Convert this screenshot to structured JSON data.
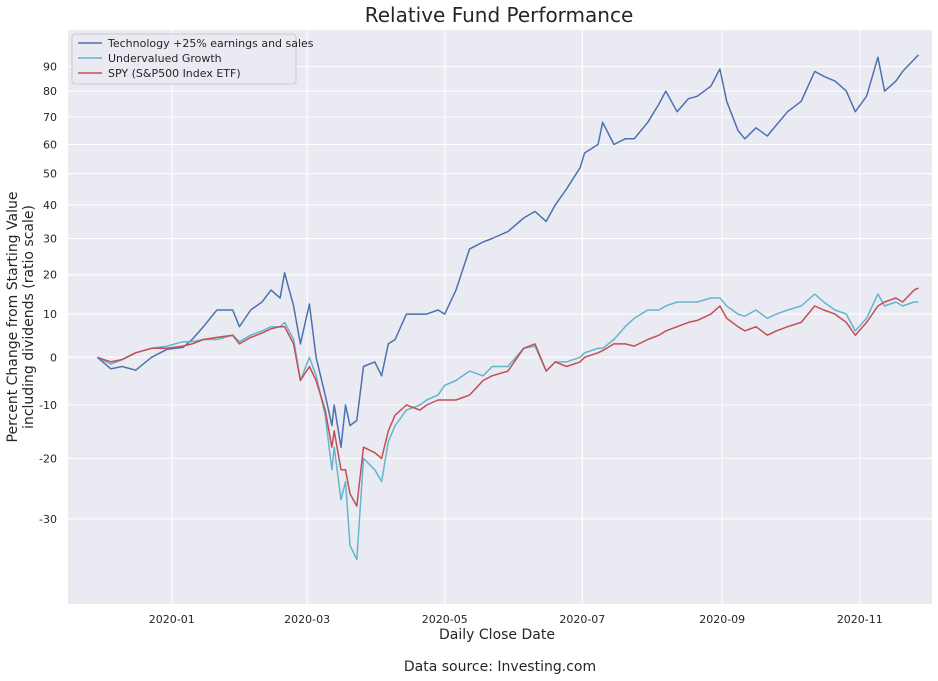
{
  "chart_data": {
    "type": "line",
    "title": "Relative Fund Performance",
    "xlabel": "Daily Close Date",
    "ylabel": "Percent Change from Starting Value",
    "ylabel2": "including dividends (ratio scale)",
    "source_note": "Data source: Investing.com",
    "y_scale": "ratio",
    "grid": true,
    "legend_position": "top-left",
    "xlim": [
      "2019-11-16",
      "2020-12-03"
    ],
    "ylim": [
      -42,
      106
    ],
    "x_ticks": [
      "2020-01-01",
      "2020-03-01",
      "2020-05-01",
      "2020-07-01",
      "2020-09-01",
      "2020-11-01"
    ],
    "x_tick_labels": [
      "2020-01",
      "2020-03",
      "2020-05",
      "2020-07",
      "2020-09",
      "2020-11"
    ],
    "y_ticks": [
      -30,
      -20,
      -10,
      0,
      10,
      20,
      30,
      40,
      50,
      60,
      70,
      80,
      90
    ],
    "y_tick_labels": [
      "-30",
      "-20",
      "-10",
      "0",
      "10",
      "20",
      "30",
      "40",
      "50",
      "60",
      "70",
      "80",
      "90"
    ],
    "series": [
      {
        "name": "Technology +25% earnings and sales",
        "color": "#4c72b0",
        "points": [
          [
            "2019-11-29",
            0
          ],
          [
            "2019-12-05",
            -2.5
          ],
          [
            "2019-12-10",
            -2
          ],
          [
            "2019-12-16",
            -2.8
          ],
          [
            "2019-12-23",
            0
          ],
          [
            "2019-12-30",
            1.8
          ],
          [
            "2020-01-06",
            2.2
          ],
          [
            "2020-01-10",
            4
          ],
          [
            "2020-01-15",
            7
          ],
          [
            "2020-01-21",
            11
          ],
          [
            "2020-01-28",
            11
          ],
          [
            "2020-01-31",
            7
          ],
          [
            "2020-02-05",
            11
          ],
          [
            "2020-02-10",
            13
          ],
          [
            "2020-02-14",
            16
          ],
          [
            "2020-02-18",
            14
          ],
          [
            "2020-02-20",
            20.5
          ],
          [
            "2020-02-24",
            12
          ],
          [
            "2020-02-27",
            3
          ],
          [
            "2020-03-02",
            12.5
          ],
          [
            "2020-03-05",
            0
          ],
          [
            "2020-03-09",
            -8
          ],
          [
            "2020-03-12",
            -14
          ],
          [
            "2020-03-13",
            -10
          ],
          [
            "2020-03-16",
            -18
          ],
          [
            "2020-03-18",
            -10
          ],
          [
            "2020-03-20",
            -14
          ],
          [
            "2020-03-23",
            -13
          ],
          [
            "2020-03-26",
            -2
          ],
          [
            "2020-03-31",
            -1
          ],
          [
            "2020-04-03",
            -4
          ],
          [
            "2020-04-06",
            3
          ],
          [
            "2020-04-09",
            4
          ],
          [
            "2020-04-14",
            10
          ],
          [
            "2020-04-20",
            10
          ],
          [
            "2020-04-23",
            10
          ],
          [
            "2020-04-28",
            11
          ],
          [
            "2020-05-01",
            10
          ],
          [
            "2020-05-06",
            16
          ],
          [
            "2020-05-12",
            27
          ],
          [
            "2020-05-18",
            29
          ],
          [
            "2020-05-22",
            30
          ],
          [
            "2020-05-29",
            32
          ],
          [
            "2020-06-05",
            36
          ],
          [
            "2020-06-10",
            38
          ],
          [
            "2020-06-15",
            35
          ],
          [
            "2020-06-19",
            40
          ],
          [
            "2020-06-24",
            45
          ],
          [
            "2020-06-30",
            52
          ],
          [
            "2020-07-02",
            57
          ],
          [
            "2020-07-08",
            60
          ],
          [
            "2020-07-10",
            68
          ],
          [
            "2020-07-15",
            60
          ],
          [
            "2020-07-20",
            62
          ],
          [
            "2020-07-24",
            62
          ],
          [
            "2020-07-30",
            68
          ],
          [
            "2020-08-04",
            75
          ],
          [
            "2020-08-07",
            80
          ],
          [
            "2020-08-12",
            72
          ],
          [
            "2020-08-17",
            77
          ],
          [
            "2020-08-21",
            78
          ],
          [
            "2020-08-27",
            82
          ],
          [
            "2020-08-31",
            89
          ],
          [
            "2020-09-03",
            76
          ],
          [
            "2020-09-08",
            65
          ],
          [
            "2020-09-11",
            62
          ],
          [
            "2020-09-16",
            66
          ],
          [
            "2020-09-21",
            63
          ],
          [
            "2020-09-25",
            67
          ],
          [
            "2020-09-30",
            72
          ],
          [
            "2020-10-06",
            76
          ],
          [
            "2020-10-12",
            88
          ],
          [
            "2020-10-16",
            86
          ],
          [
            "2020-10-21",
            84
          ],
          [
            "2020-10-26",
            80
          ],
          [
            "2020-10-30",
            72
          ],
          [
            "2020-11-04",
            78
          ],
          [
            "2020-11-09",
            94
          ],
          [
            "2020-11-12",
            80
          ],
          [
            "2020-11-17",
            84
          ],
          [
            "2020-11-20",
            88
          ],
          [
            "2020-11-25",
            93
          ],
          [
            "2020-11-27",
            95
          ]
        ]
      },
      {
        "name": "Undervalued Growth",
        "color": "#64b5cd",
        "points": [
          [
            "2019-11-29",
            0
          ],
          [
            "2019-12-05",
            -1.5
          ],
          [
            "2019-12-10",
            -0.5
          ],
          [
            "2019-12-16",
            1
          ],
          [
            "2019-12-23",
            2
          ],
          [
            "2019-12-30",
            2.5
          ],
          [
            "2020-01-06",
            3.5
          ],
          [
            "2020-01-10",
            3.5
          ],
          [
            "2020-01-15",
            4
          ],
          [
            "2020-01-21",
            4
          ],
          [
            "2020-01-28",
            5
          ],
          [
            "2020-01-31",
            3.5
          ],
          [
            "2020-02-05",
            5
          ],
          [
            "2020-02-10",
            6
          ],
          [
            "2020-02-14",
            7
          ],
          [
            "2020-02-18",
            7
          ],
          [
            "2020-02-20",
            8
          ],
          [
            "2020-02-24",
            4
          ],
          [
            "2020-02-27",
            -5
          ],
          [
            "2020-03-02",
            0
          ],
          [
            "2020-03-05",
            -4
          ],
          [
            "2020-03-09",
            -12
          ],
          [
            "2020-03-12",
            -22
          ],
          [
            "2020-03-13",
            -18
          ],
          [
            "2020-03-16",
            -27
          ],
          [
            "2020-03-18",
            -24
          ],
          [
            "2020-03-20",
            -34
          ],
          [
            "2020-03-23",
            -36
          ],
          [
            "2020-03-26",
            -20
          ],
          [
            "2020-03-31",
            -22
          ],
          [
            "2020-04-03",
            -24
          ],
          [
            "2020-04-06",
            -17
          ],
          [
            "2020-04-09",
            -14
          ],
          [
            "2020-04-14",
            -11
          ],
          [
            "2020-04-20",
            -10
          ],
          [
            "2020-04-23",
            -9
          ],
          [
            "2020-04-28",
            -8
          ],
          [
            "2020-05-01",
            -6
          ],
          [
            "2020-05-06",
            -5
          ],
          [
            "2020-05-12",
            -3
          ],
          [
            "2020-05-18",
            -4
          ],
          [
            "2020-05-22",
            -2
          ],
          [
            "2020-05-29",
            -2
          ],
          [
            "2020-06-05",
            2
          ],
          [
            "2020-06-10",
            2.5
          ],
          [
            "2020-06-15",
            -3
          ],
          [
            "2020-06-19",
            -1
          ],
          [
            "2020-06-24",
            -1
          ],
          [
            "2020-06-30",
            0
          ],
          [
            "2020-07-02",
            1
          ],
          [
            "2020-07-08",
            2
          ],
          [
            "2020-07-10",
            2
          ],
          [
            "2020-07-15",
            4
          ],
          [
            "2020-07-20",
            7
          ],
          [
            "2020-07-24",
            9
          ],
          [
            "2020-07-30",
            11
          ],
          [
            "2020-08-04",
            11
          ],
          [
            "2020-08-07",
            12
          ],
          [
            "2020-08-12",
            13
          ],
          [
            "2020-08-17",
            13
          ],
          [
            "2020-08-21",
            13
          ],
          [
            "2020-08-27",
            14
          ],
          [
            "2020-08-31",
            14
          ],
          [
            "2020-09-03",
            12
          ],
          [
            "2020-09-08",
            10
          ],
          [
            "2020-09-11",
            9.5
          ],
          [
            "2020-09-16",
            11
          ],
          [
            "2020-09-21",
            9
          ],
          [
            "2020-09-25",
            10
          ],
          [
            "2020-09-30",
            11
          ],
          [
            "2020-10-06",
            12
          ],
          [
            "2020-10-12",
            15
          ],
          [
            "2020-10-16",
            13
          ],
          [
            "2020-10-21",
            11
          ],
          [
            "2020-10-26",
            10
          ],
          [
            "2020-10-30",
            6
          ],
          [
            "2020-11-04",
            9
          ],
          [
            "2020-11-09",
            15
          ],
          [
            "2020-11-12",
            12
          ],
          [
            "2020-11-17",
            13
          ],
          [
            "2020-11-20",
            12
          ],
          [
            "2020-11-25",
            13
          ],
          [
            "2020-11-27",
            13
          ]
        ]
      },
      {
        "name": "SPY (S&P500 Index ETF)",
        "color": "#c44e52",
        "points": [
          [
            "2019-11-29",
            0
          ],
          [
            "2019-12-05",
            -1
          ],
          [
            "2019-12-10",
            -0.5
          ],
          [
            "2019-12-16",
            1
          ],
          [
            "2019-12-23",
            2
          ],
          [
            "2019-12-30",
            2
          ],
          [
            "2020-01-06",
            2.5
          ],
          [
            "2020-01-10",
            3
          ],
          [
            "2020-01-15",
            4
          ],
          [
            "2020-01-21",
            4.5
          ],
          [
            "2020-01-28",
            5
          ],
          [
            "2020-01-31",
            3
          ],
          [
            "2020-02-05",
            4.5
          ],
          [
            "2020-02-10",
            5.5
          ],
          [
            "2020-02-14",
            6.5
          ],
          [
            "2020-02-18",
            7
          ],
          [
            "2020-02-20",
            7
          ],
          [
            "2020-02-24",
            3
          ],
          [
            "2020-02-27",
            -5
          ],
          [
            "2020-03-02",
            -2
          ],
          [
            "2020-03-05",
            -5
          ],
          [
            "2020-03-09",
            -11
          ],
          [
            "2020-03-12",
            -18
          ],
          [
            "2020-03-13",
            -15
          ],
          [
            "2020-03-16",
            -22
          ],
          [
            "2020-03-18",
            -22
          ],
          [
            "2020-03-20",
            -26
          ],
          [
            "2020-03-23",
            -28
          ],
          [
            "2020-03-26",
            -18
          ],
          [
            "2020-03-31",
            -19
          ],
          [
            "2020-04-03",
            -20
          ],
          [
            "2020-04-06",
            -15
          ],
          [
            "2020-04-09",
            -12
          ],
          [
            "2020-04-14",
            -10
          ],
          [
            "2020-04-20",
            -11
          ],
          [
            "2020-04-23",
            -10
          ],
          [
            "2020-04-28",
            -9
          ],
          [
            "2020-05-01",
            -9
          ],
          [
            "2020-05-06",
            -9
          ],
          [
            "2020-05-12",
            -8
          ],
          [
            "2020-05-18",
            -5
          ],
          [
            "2020-05-22",
            -4
          ],
          [
            "2020-05-29",
            -3
          ],
          [
            "2020-06-05",
            2
          ],
          [
            "2020-06-10",
            3
          ],
          [
            "2020-06-15",
            -3
          ],
          [
            "2020-06-19",
            -1
          ],
          [
            "2020-06-24",
            -2
          ],
          [
            "2020-06-30",
            -1
          ],
          [
            "2020-07-02",
            0
          ],
          [
            "2020-07-08",
            1
          ],
          [
            "2020-07-10",
            1.5
          ],
          [
            "2020-07-15",
            3
          ],
          [
            "2020-07-20",
            3
          ],
          [
            "2020-07-24",
            2.5
          ],
          [
            "2020-07-30",
            4
          ],
          [
            "2020-08-04",
            5
          ],
          [
            "2020-08-07",
            6
          ],
          [
            "2020-08-12",
            7
          ],
          [
            "2020-08-17",
            8
          ],
          [
            "2020-08-21",
            8.5
          ],
          [
            "2020-08-27",
            10
          ],
          [
            "2020-08-31",
            12
          ],
          [
            "2020-09-03",
            9
          ],
          [
            "2020-09-08",
            7
          ],
          [
            "2020-09-11",
            6
          ],
          [
            "2020-09-16",
            7
          ],
          [
            "2020-09-21",
            5
          ],
          [
            "2020-09-25",
            6
          ],
          [
            "2020-09-30",
            7
          ],
          [
            "2020-10-06",
            8
          ],
          [
            "2020-10-12",
            12
          ],
          [
            "2020-10-16",
            11
          ],
          [
            "2020-10-21",
            10
          ],
          [
            "2020-10-26",
            8
          ],
          [
            "2020-10-30",
            5
          ],
          [
            "2020-11-04",
            8
          ],
          [
            "2020-11-09",
            12
          ],
          [
            "2020-11-12",
            13
          ],
          [
            "2020-11-17",
            14
          ],
          [
            "2020-11-20",
            13
          ],
          [
            "2020-11-25",
            16
          ],
          [
            "2020-11-27",
            16.5
          ]
        ]
      }
    ]
  }
}
